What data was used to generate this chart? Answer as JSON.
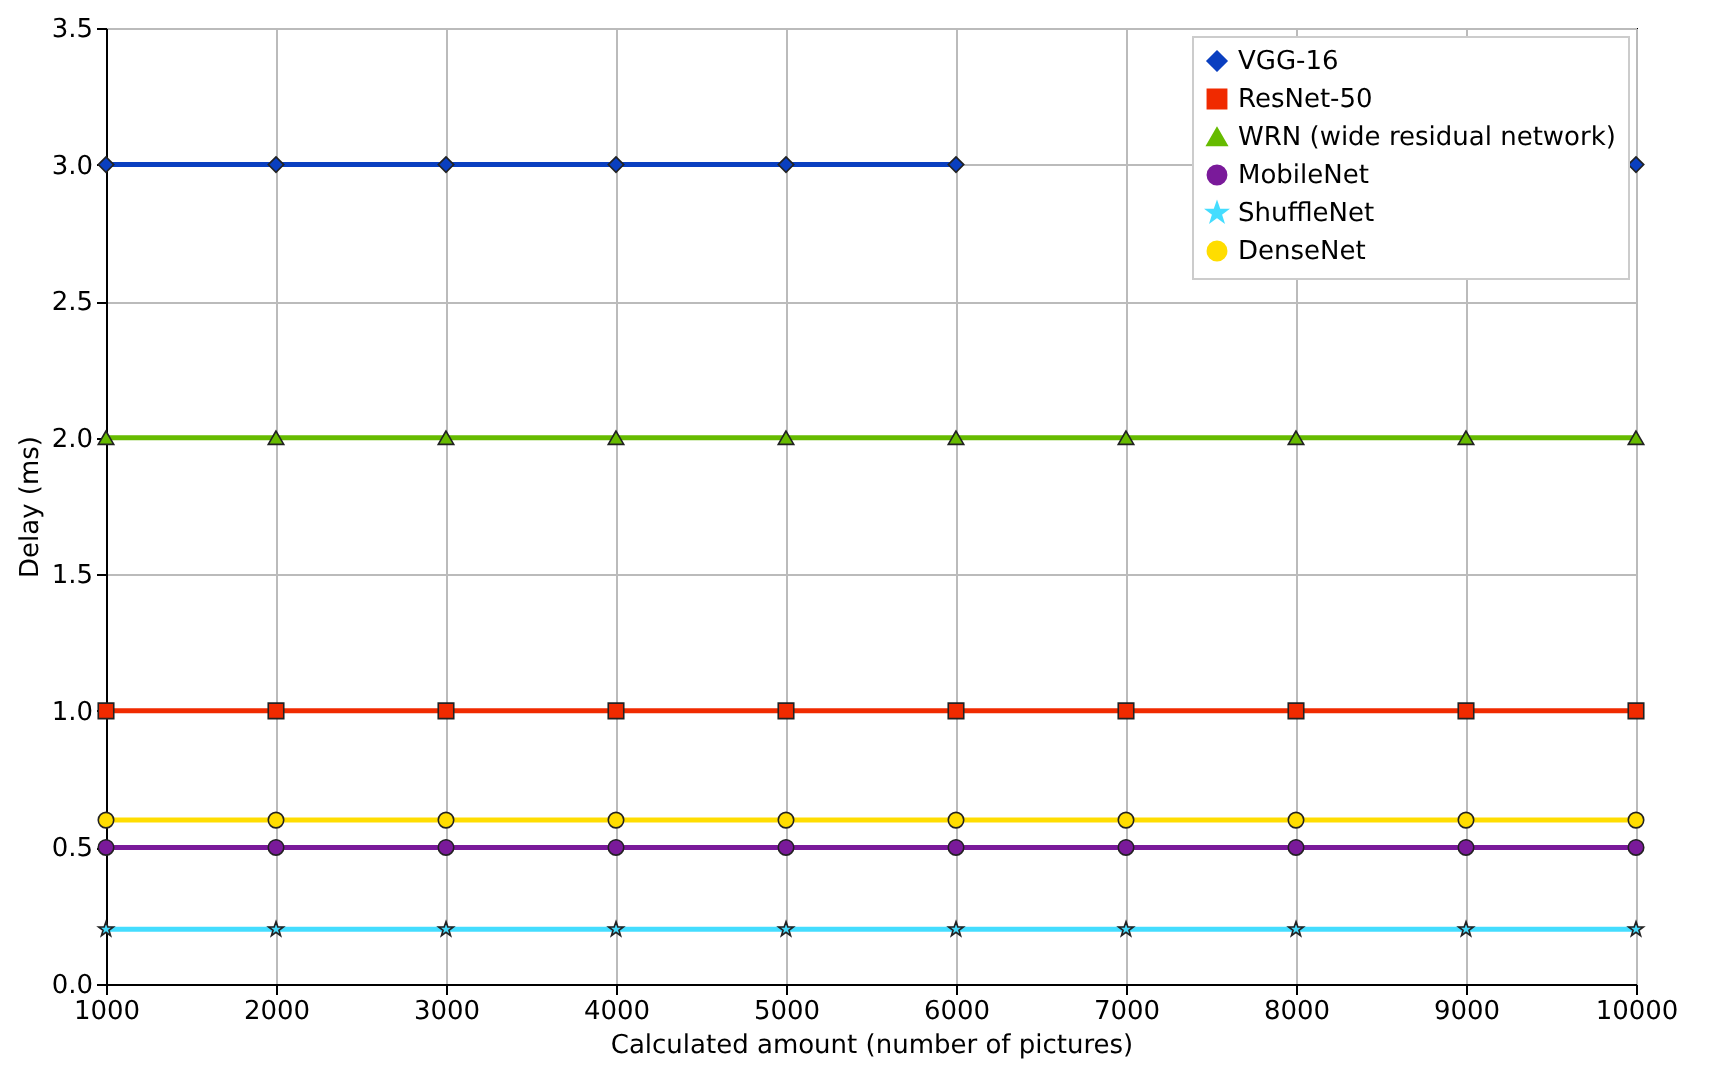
{
  "chart_data": {
    "type": "line",
    "xlabel": "Calculated amount (number of pictures)",
    "ylabel": "Delay (ms)",
    "x": [
      1000,
      2000,
      3000,
      4000,
      5000,
      6000,
      7000,
      8000,
      9000,
      10000
    ],
    "series": [
      {
        "name": "VGG-16",
        "color": "#0a3fc0",
        "marker": "diamond",
        "values": [
          3,
          3,
          3,
          3,
          3,
          3,
          null,
          null,
          null,
          3
        ]
      },
      {
        "name": "ResNet-50",
        "color": "#f02a00",
        "marker": "square",
        "values": [
          1,
          1,
          1,
          1,
          1,
          1,
          1,
          1,
          1,
          1
        ]
      },
      {
        "name": "WRN (wide residual network)",
        "color": "#66bb00",
        "marker": "triangle",
        "values": [
          2,
          2,
          2,
          2,
          2,
          2,
          2,
          2,
          2,
          2
        ]
      },
      {
        "name": "MobileNet",
        "color": "#7a1a9a",
        "marker": "circle",
        "values": [
          0.5,
          0.5,
          0.5,
          0.5,
          0.5,
          0.5,
          0.5,
          0.5,
          0.5,
          0.5
        ]
      },
      {
        "name": "ShuffleNet",
        "color": "#44ddff",
        "marker": "star",
        "values": [
          0.2,
          0.2,
          0.2,
          0.2,
          0.2,
          0.2,
          0.2,
          0.2,
          0.2,
          0.2
        ]
      },
      {
        "name": "DenseNet",
        "color": "#ffdd00",
        "marker": "circle",
        "values": [
          0.6,
          0.6,
          0.6,
          0.6,
          0.6,
          0.6,
          0.6,
          0.6,
          0.6,
          0.6
        ]
      }
    ],
    "xlim": [
      1000,
      10000
    ],
    "xticks": [
      1000,
      2000,
      3000,
      4000,
      5000,
      6000,
      7000,
      8000,
      9000,
      10000
    ],
    "ylim": [
      0,
      3.5
    ],
    "yticks": [
      {
        "value": 0,
        "label": "0.0"
      },
      0.5,
      {
        "value": 1,
        "label": "1.0"
      },
      1.5,
      {
        "value": 2,
        "label": "2.0"
      },
      2.5,
      {
        "value": 3,
        "label": "3.0"
      },
      3.5
    ],
    "grid": true,
    "legend": "top right",
    "line_style": "solid"
  }
}
